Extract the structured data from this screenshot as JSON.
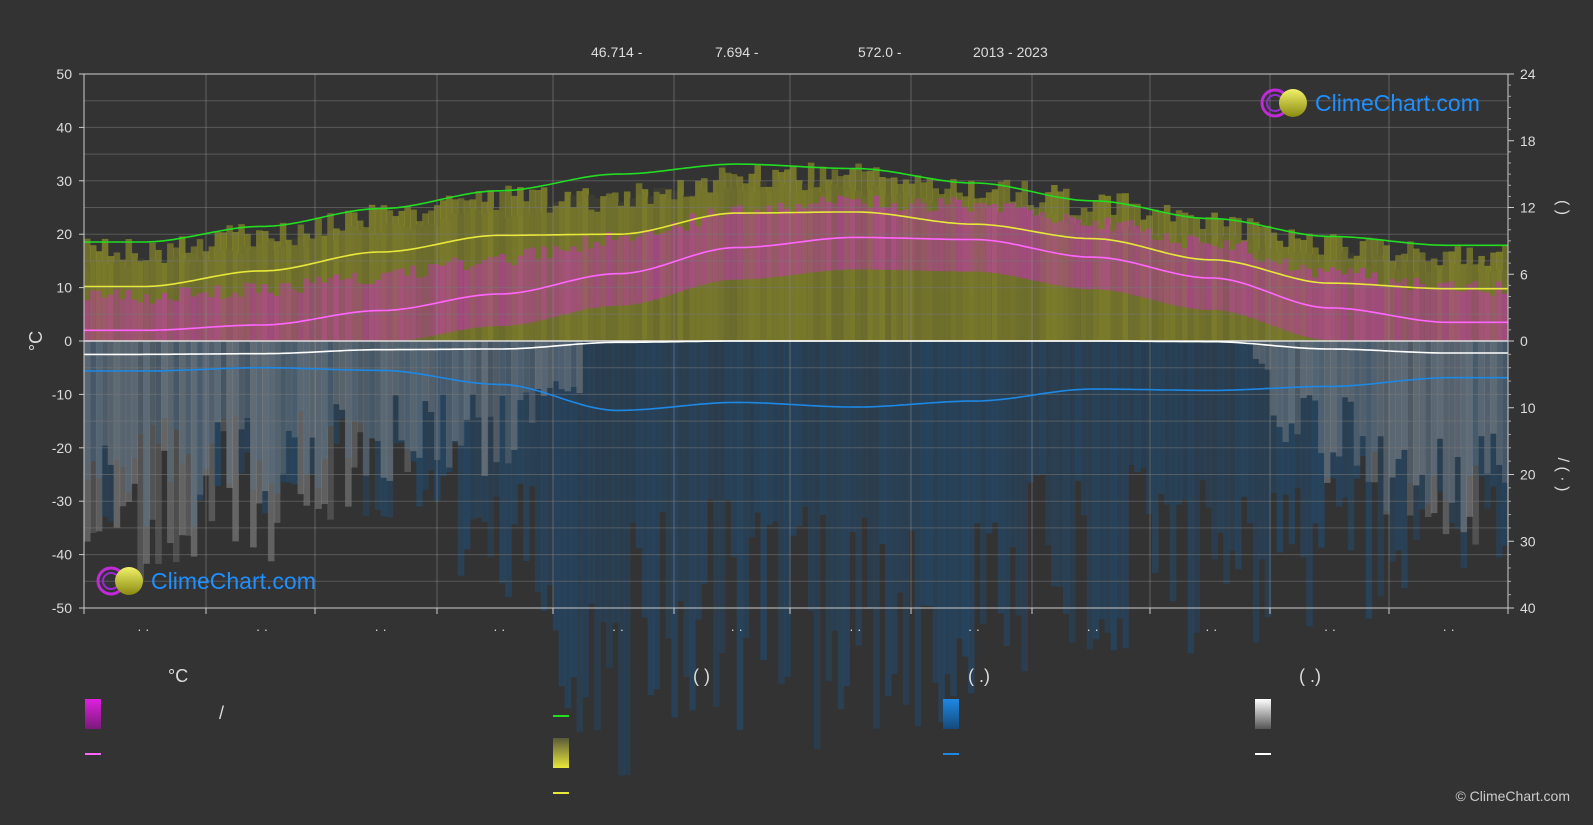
{
  "header": {
    "lat": "46.714 -",
    "lon": "7.694 -",
    "elevation": "572.0 -",
    "years": "2013 - 2023"
  },
  "logo_text": "ClimeChart.com",
  "copyright": "© ClimeChart.com",
  "legend": {
    "col1_title": "°C",
    "col2_title": "(          )",
    "col3_title": "(   .)",
    "col4_title": "(   .)",
    "slash": "/"
  },
  "colors": {
    "background": "#333333",
    "temp_band": "#e020e0",
    "daylight": "#22dd22",
    "sunshine": "#e8e83a",
    "rain": "#1e88e5",
    "snow": "#ffffff",
    "mean_temp": "#ff66ff"
  },
  "chart_data": {
    "type": "line",
    "x": [
      0.5,
      1.5,
      2.5,
      3.5,
      4.5,
      5.5,
      6.5,
      7.5,
      8.5,
      9.5,
      10.5,
      11.5
    ],
    "categories": [
      "· ·",
      "· ·",
      "· ·",
      "· ·",
      "· ·",
      "· ·",
      "· ·",
      "· ·",
      "· ·",
      "· ·",
      "· ·",
      "· ·"
    ],
    "ylabel": "°C",
    "ylim": [
      -50,
      50
    ],
    "y_ticks": [
      50,
      40,
      30,
      20,
      10,
      0,
      -10,
      -20,
      -30,
      -40,
      -50
    ],
    "y2_top_ticks": [
      24,
      18,
      12,
      6,
      0
    ],
    "y2_top_lim": [
      0,
      24
    ],
    "y2_bottom_ticks": [
      10,
      20,
      30,
      40
    ],
    "y2_bottom_lim": [
      0,
      40
    ],
    "y2_label_top": "(   )",
    "y2_label_bottom": "/ (   ·   )",
    "grid": true,
    "series": [
      {
        "key": "daylight",
        "axis": "hours",
        "values": [
          8.9,
          10.3,
          11.9,
          13.5,
          15.0,
          15.9,
          15.5,
          14.2,
          12.6,
          11.0,
          9.4,
          8.6
        ]
      },
      {
        "key": "sunshine",
        "axis": "hours",
        "values": [
          4.9,
          6.3,
          8.0,
          9.5,
          9.6,
          11.5,
          11.6,
          10.5,
          9.2,
          7.3,
          5.2,
          4.7
        ]
      },
      {
        "key": "mean_temp",
        "axis": "celsius",
        "values": [
          2.0,
          3.0,
          5.7,
          8.8,
          12.6,
          17.5,
          19.4,
          19.0,
          15.7,
          11.8,
          6.2,
          3.5
        ]
      },
      {
        "key": "snow",
        "axis": "mm",
        "values": [
          2.0,
          1.9,
          1.3,
          1.2,
          0.2,
          0.0,
          0.0,
          0.0,
          0.0,
          0.1,
          1.2,
          1.8
        ]
      },
      {
        "key": "rain",
        "axis": "mm",
        "values": [
          4.5,
          4.0,
          4.4,
          6.5,
          10.4,
          9.2,
          9.9,
          9.0,
          7.2,
          7.4,
          6.8,
          5.5
        ]
      }
    ]
  }
}
